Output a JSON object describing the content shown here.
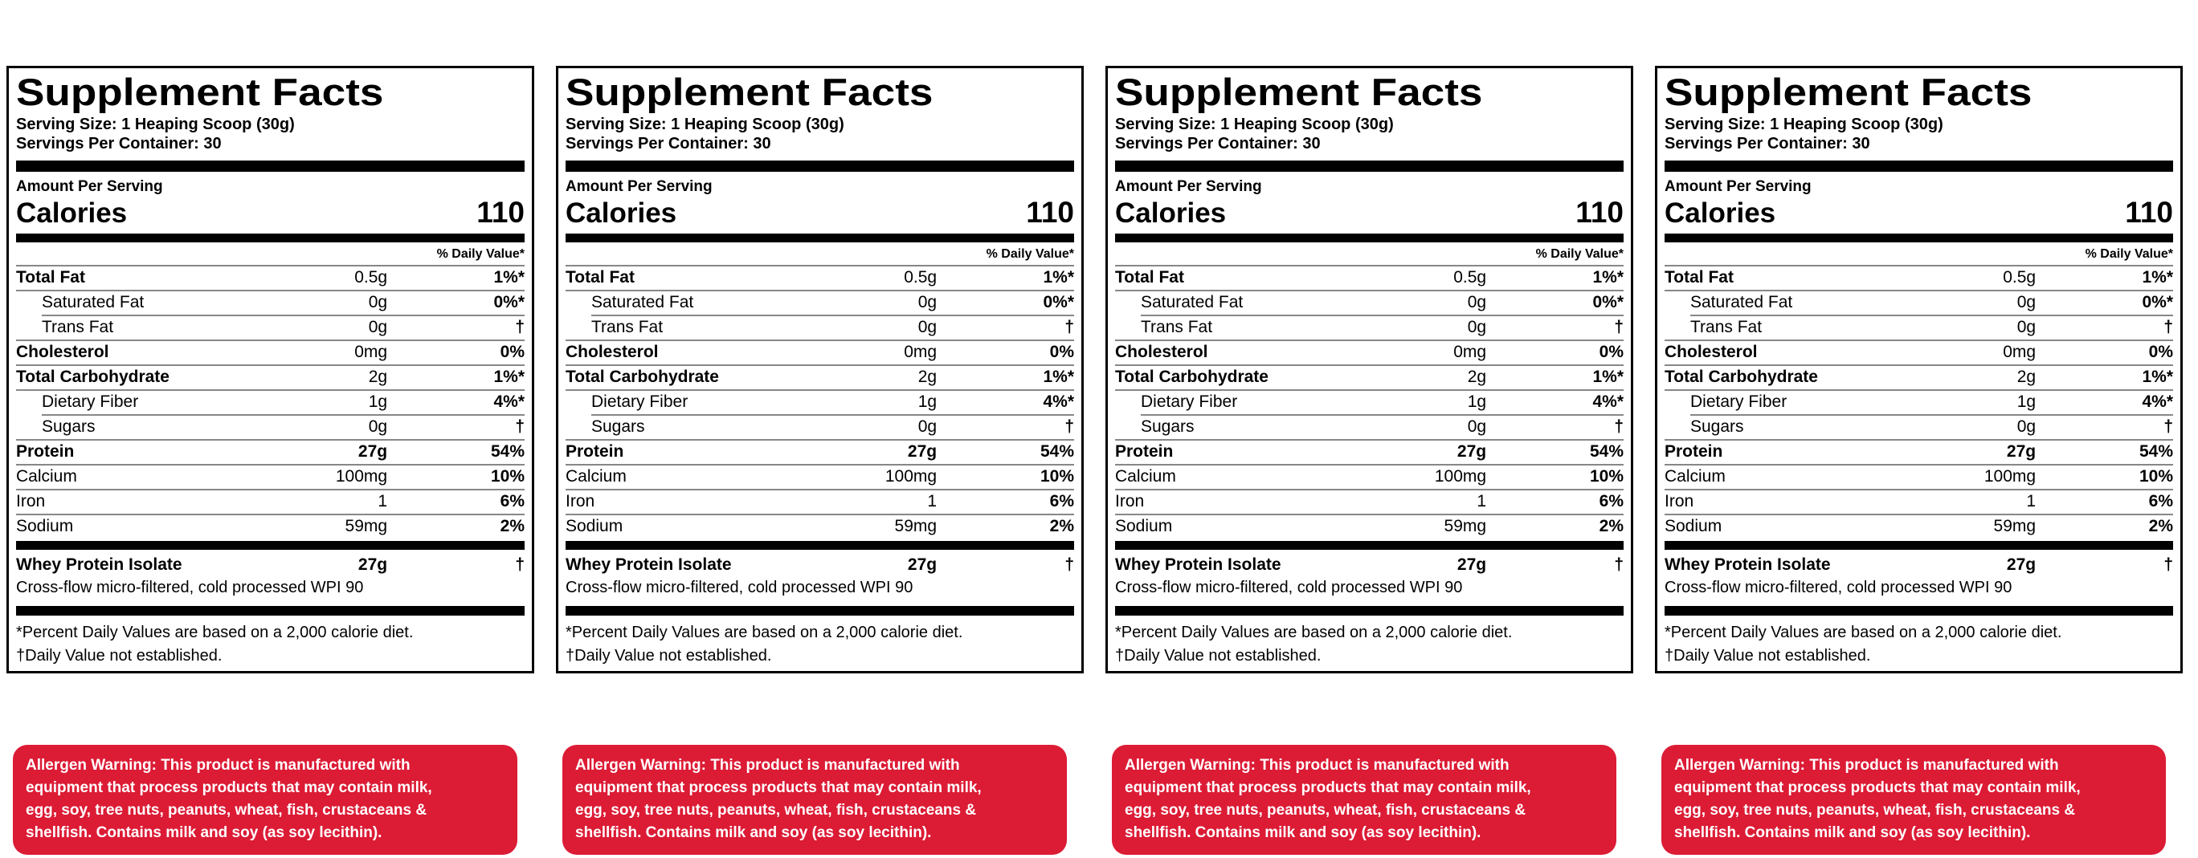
{
  "panel_count": 4,
  "label": {
    "title": "Supplement Facts",
    "serving_size": "Serving Size: 1 Heaping Scoop (30g)",
    "servings_per_container": "Servings Per Container: 30",
    "amount_per_serving": "Amount Per Serving",
    "calories_label": "Calories",
    "calories_value": "110",
    "daily_value_header": "% Daily Value*",
    "rows": [
      {
        "name": "Total Fat",
        "amount": "0.5g",
        "dv": "1%*",
        "bold": true,
        "amount_bold": false,
        "indent": false,
        "rule": "full"
      },
      {
        "name": "Saturated Fat",
        "amount": "0g",
        "dv": "0%*",
        "bold": false,
        "amount_bold": false,
        "indent": true,
        "rule": "full"
      },
      {
        "name": "Trans Fat",
        "amount": "0g",
        "dv": "†",
        "bold": false,
        "amount_bold": false,
        "indent": true,
        "rule": "indent"
      },
      {
        "name": "Cholesterol",
        "amount": "0mg",
        "dv": "0%",
        "bold": true,
        "amount_bold": false,
        "indent": false,
        "rule": "full"
      },
      {
        "name": "Total Carbohydrate",
        "amount": "2g",
        "dv": "1%*",
        "bold": true,
        "amount_bold": false,
        "indent": false,
        "rule": "full"
      },
      {
        "name": "Dietary Fiber",
        "amount": "1g",
        "dv": "4%*",
        "bold": false,
        "amount_bold": false,
        "indent": true,
        "rule": "full"
      },
      {
        "name": "Sugars",
        "amount": "0g",
        "dv": "†",
        "bold": false,
        "amount_bold": false,
        "indent": true,
        "rule": "indent"
      },
      {
        "name": "Protein",
        "amount": "27g",
        "dv": "54%",
        "bold": true,
        "amount_bold": true,
        "indent": false,
        "rule": "full"
      },
      {
        "name": "Calcium",
        "amount": "100mg",
        "dv": "10%",
        "bold": false,
        "amount_bold": false,
        "indent": false,
        "rule": "full"
      },
      {
        "name": "Iron",
        "amount": "1",
        "dv": "6%",
        "bold": false,
        "amount_bold": false,
        "indent": false,
        "rule": "full"
      },
      {
        "name": "Sodium",
        "amount": "59mg",
        "dv": "2%",
        "bold": false,
        "amount_bold": false,
        "indent": false,
        "rule": "full"
      }
    ],
    "ingredient_row": {
      "name": "Whey Protein Isolate",
      "amount": "27g",
      "dv": "†"
    },
    "ingredient_note": "Cross-flow micro-filtered, cold processed WPI 90",
    "footnotes": [
      "*Percent Daily Values are based on a 2,000 calorie diet.",
      "†Daily Value not established."
    ]
  },
  "allergen": {
    "background": "#dc1b35",
    "text_color": "#ffffff",
    "lines": [
      "Allergen Warning: This product is manufactured with",
      "equipment that process products that may contain milk,",
      "egg, soy, tree nuts, peanuts, wheat, fish, crustaceans &",
      "shellfish. Contains milk and soy (as soy lecithin)."
    ],
    "text": "Allergen Warning: This product is manufactured with equipment that process products that may contain milk, egg, soy, tree nuts, peanuts, wheat, fish, crustaceans & shellfish. Contains milk and soy (as soy lecithin)."
  }
}
